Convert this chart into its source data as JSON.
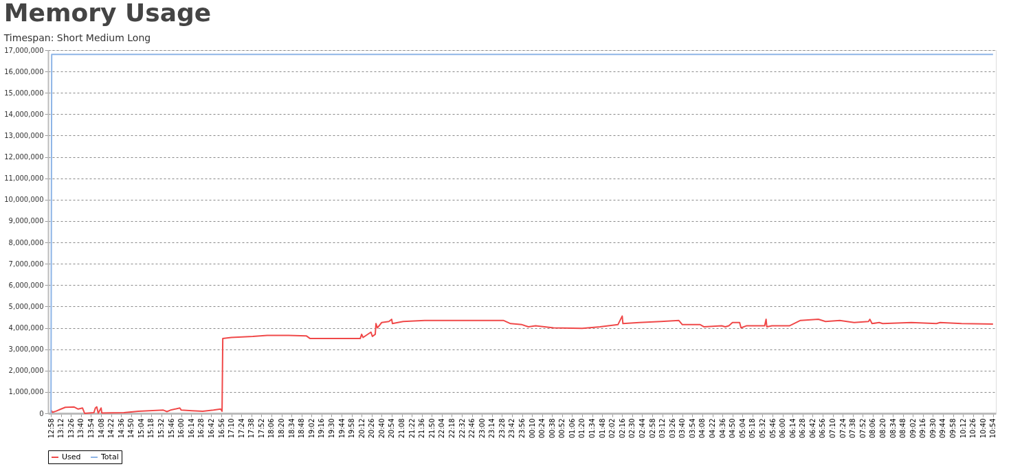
{
  "chart_data": {
    "type": "line",
    "title": "Memory Usage",
    "subtitle": "Timespan: Short Medium Long",
    "xlim": [
      "2000-01-01T12:54",
      "2000-01-02T10:58"
    ],
    "ylim": [
      0,
      17000000
    ],
    "yticks": [
      0,
      {
        "value": 1000000,
        "label": "1,000,000"
      },
      {
        "value": 2000000,
        "label": "2,000,000"
      },
      {
        "value": 3000000,
        "label": "3,000,000"
      },
      {
        "value": 4000000,
        "label": "4,000,000"
      },
      {
        "value": 5000000,
        "label": "5,000,000"
      },
      {
        "value": 6000000,
        "label": "6,000,000"
      },
      {
        "value": 7000000,
        "label": "7,000,000"
      },
      {
        "value": 8000000,
        "label": "8,000,000"
      },
      {
        "value": 9000000,
        "label": "9,000,000"
      },
      {
        "value": 10000000,
        "label": "10,000,000"
      },
      {
        "value": 11000000,
        "label": "11,000,000"
      },
      {
        "value": 12000000,
        "label": "12,000,000"
      },
      {
        "value": 13000000,
        "label": "13,000,000"
      },
      {
        "value": 14000000,
        "label": "14,000,000"
      },
      {
        "value": 15000000,
        "label": "15,000,000"
      },
      {
        "value": 16000000,
        "label": "16,000,000"
      },
      {
        "value": 17000000,
        "label": "17,000,000"
      }
    ],
    "xticks": [
      {
        "value": "2000-01-01T12:58",
        "label": "12:58"
      },
      {
        "value": "2000-01-01T13:12",
        "label": "13:12"
      },
      {
        "value": "2000-01-01T13:26",
        "label": "13:26"
      },
      {
        "value": "2000-01-01T13:40",
        "label": "13:40"
      },
      {
        "value": "2000-01-01T13:54",
        "label": "13:54"
      },
      {
        "value": "2000-01-01T14:08",
        "label": "14:08"
      },
      {
        "value": "2000-01-01T14:22",
        "label": "14:22"
      },
      {
        "value": "2000-01-01T14:36",
        "label": "14:36"
      },
      {
        "value": "2000-01-01T14:50",
        "label": "14:50"
      },
      {
        "value": "2000-01-01T15:04",
        "label": "15:04"
      },
      {
        "value": "2000-01-01T15:18",
        "label": "15:18"
      },
      {
        "value": "2000-01-01T15:32",
        "label": "15:32"
      },
      {
        "value": "2000-01-01T15:46",
        "label": "15:46"
      },
      {
        "value": "2000-01-01T16:00",
        "label": "16:00"
      },
      {
        "value": "2000-01-01T16:14",
        "label": "16:14"
      },
      {
        "value": "2000-01-01T16:28",
        "label": "16:28"
      },
      {
        "value": "2000-01-01T16:42",
        "label": "16:42"
      },
      {
        "value": "2000-01-01T16:56",
        "label": "16:56"
      },
      {
        "value": "2000-01-01T17:10",
        "label": "17:10"
      },
      {
        "value": "2000-01-01T17:24",
        "label": "17:24"
      },
      {
        "value": "2000-01-01T17:38",
        "label": "17:38"
      },
      {
        "value": "2000-01-01T17:52",
        "label": "17:52"
      },
      {
        "value": "2000-01-01T18:06",
        "label": "18:06"
      },
      {
        "value": "2000-01-01T18:20",
        "label": "18:20"
      },
      {
        "value": "2000-01-01T18:34",
        "label": "18:34"
      },
      {
        "value": "2000-01-01T18:48",
        "label": "18:48"
      },
      {
        "value": "2000-01-01T19:02",
        "label": "19:02"
      },
      {
        "value": "2000-01-01T19:16",
        "label": "19:16"
      },
      {
        "value": "2000-01-01T19:30",
        "label": "19:30"
      },
      {
        "value": "2000-01-01T19:44",
        "label": "19:44"
      },
      {
        "value": "2000-01-01T19:58",
        "label": "19:58"
      },
      {
        "value": "2000-01-01T20:12",
        "label": "20:12"
      },
      {
        "value": "2000-01-01T20:26",
        "label": "20:26"
      },
      {
        "value": "2000-01-01T20:40",
        "label": "20:40"
      },
      {
        "value": "2000-01-01T20:54",
        "label": "20:54"
      },
      {
        "value": "2000-01-01T21:08",
        "label": "21:08"
      },
      {
        "value": "2000-01-01T21:22",
        "label": "21:22"
      },
      {
        "value": "2000-01-01T21:36",
        "label": "21:36"
      },
      {
        "value": "2000-01-01T21:50",
        "label": "21:50"
      },
      {
        "value": "2000-01-01T22:04",
        "label": "22:04"
      },
      {
        "value": "2000-01-01T22:18",
        "label": "22:18"
      },
      {
        "value": "2000-01-01T22:32",
        "label": "22:32"
      },
      {
        "value": "2000-01-01T22:46",
        "label": "22:46"
      },
      {
        "value": "2000-01-01T23:00",
        "label": "23:00"
      },
      {
        "value": "2000-01-01T23:14",
        "label": "23:14"
      },
      {
        "value": "2000-01-01T23:28",
        "label": "23:28"
      },
      {
        "value": "2000-01-01T23:42",
        "label": "23:42"
      },
      {
        "value": "2000-01-01T23:56",
        "label": "23:56"
      },
      {
        "value": "2000-01-02T00:10",
        "label": "00:10"
      },
      {
        "value": "2000-01-02T00:24",
        "label": "00:24"
      },
      {
        "value": "2000-01-02T00:38",
        "label": "00:38"
      },
      {
        "value": "2000-01-02T00:52",
        "label": "00:52"
      },
      {
        "value": "2000-01-02T01:06",
        "label": "01:06"
      },
      {
        "value": "2000-01-02T01:20",
        "label": "01:20"
      },
      {
        "value": "2000-01-02T01:34",
        "label": "01:34"
      },
      {
        "value": "2000-01-02T01:48",
        "label": "01:48"
      },
      {
        "value": "2000-01-02T02:02",
        "label": "02:02"
      },
      {
        "value": "2000-01-02T02:16",
        "label": "02:16"
      },
      {
        "value": "2000-01-02T02:30",
        "label": "02:30"
      },
      {
        "value": "2000-01-02T02:44",
        "label": "02:44"
      },
      {
        "value": "2000-01-02T02:58",
        "label": "02:58"
      },
      {
        "value": "2000-01-02T03:12",
        "label": "03:12"
      },
      {
        "value": "2000-01-02T03:26",
        "label": "03:26"
      },
      {
        "value": "2000-01-02T03:40",
        "label": "03:40"
      },
      {
        "value": "2000-01-02T03:54",
        "label": "03:54"
      },
      {
        "value": "2000-01-02T04:08",
        "label": "04:08"
      },
      {
        "value": "2000-01-02T04:22",
        "label": "04:22"
      },
      {
        "value": "2000-01-02T04:36",
        "label": "04:36"
      },
      {
        "value": "2000-01-02T04:50",
        "label": "04:50"
      },
      {
        "value": "2000-01-02T05:04",
        "label": "05:04"
      },
      {
        "value": "2000-01-02T05:18",
        "label": "05:18"
      },
      {
        "value": "2000-01-02T05:32",
        "label": "05:32"
      },
      {
        "value": "2000-01-02T05:46",
        "label": "05:46"
      },
      {
        "value": "2000-01-02T06:00",
        "label": "06:00"
      },
      {
        "value": "2000-01-02T06:14",
        "label": "06:14"
      },
      {
        "value": "2000-01-02T06:28",
        "label": "06:28"
      },
      {
        "value": "2000-01-02T06:42",
        "label": "06:42"
      },
      {
        "value": "2000-01-02T06:56",
        "label": "06:56"
      },
      {
        "value": "2000-01-02T07:10",
        "label": "07:10"
      },
      {
        "value": "2000-01-02T07:24",
        "label": "07:24"
      },
      {
        "value": "2000-01-02T07:38",
        "label": "07:38"
      },
      {
        "value": "2000-01-02T07:52",
        "label": "07:52"
      },
      {
        "value": "2000-01-02T08:06",
        "label": "08:06"
      },
      {
        "value": "2000-01-02T08:20",
        "label": "08:20"
      },
      {
        "value": "2000-01-02T08:34",
        "label": "08:34"
      },
      {
        "value": "2000-01-02T08:48",
        "label": "08:48"
      },
      {
        "value": "2000-01-02T09:02",
        "label": "09:02"
      },
      {
        "value": "2000-01-02T09:16",
        "label": "09:16"
      },
      {
        "value": "2000-01-02T09:30",
        "label": "09:30"
      },
      {
        "value": "2000-01-02T09:44",
        "label": "09:44"
      },
      {
        "value": "2000-01-02T09:58",
        "label": "09:58"
      },
      {
        "value": "2000-01-02T10:12",
        "label": "10:12"
      },
      {
        "value": "2000-01-02T10:26",
        "label": "10:26"
      },
      {
        "value": "2000-01-02T10:40",
        "label": "10:40"
      },
      {
        "value": "2000-01-02T10:54",
        "label": "10:54"
      }
    ],
    "grid": "y",
    "legend": "bottom",
    "line_style": "solid",
    "series": [
      {
        "name": "Used",
        "color": "#f04848",
        "x": [
          "2000-01-01T12:58",
          "2000-01-01T13:00",
          "2000-01-01T13:05",
          "2000-01-01T13:12",
          "2000-01-01T13:18",
          "2000-01-01T13:30",
          "2000-01-01T13:36",
          "2000-01-01T13:42",
          "2000-01-01T13:45",
          "2000-01-01T13:58",
          "2000-01-01T14:00",
          "2000-01-01T14:02",
          "2000-01-01T14:04",
          "2000-01-01T14:08",
          "2000-01-01T14:09",
          "2000-01-01T14:40",
          "2000-01-01T15:00",
          "2000-01-01T15:35",
          "2000-01-01T15:40",
          "2000-01-01T15:45",
          "2000-01-01T15:58",
          "2000-01-01T16:00",
          "2000-01-01T16:15",
          "2000-01-01T16:30",
          "2000-01-01T16:45",
          "2000-01-01T16:55",
          "2000-01-01T16:57",
          "2000-01-01T16:58",
          "2000-01-01T17:10",
          "2000-01-01T17:40",
          "2000-01-01T18:00",
          "2000-01-01T18:30",
          "2000-01-01T18:55",
          "2000-01-01T19:00",
          "2000-01-01T20:10",
          "2000-01-01T20:12",
          "2000-01-01T20:14",
          "2000-01-01T20:25",
          "2000-01-01T20:27",
          "2000-01-01T20:31",
          "2000-01-01T20:32",
          "2000-01-01T20:34",
          "2000-01-01T20:40",
          "2000-01-01T20:50",
          "2000-01-01T20:54",
          "2000-01-01T20:55",
          "2000-01-01T21:10",
          "2000-01-01T21:40",
          "2000-01-01T23:30",
          "2000-01-01T23:40",
          "2000-01-01T23:56",
          "2000-01-02T00:05",
          "2000-01-02T00:15",
          "2000-01-02T00:40",
          "2000-01-02T01:20",
          "2000-01-02T01:45",
          "2000-01-02T02:10",
          "2000-01-02T02:16",
          "2000-01-02T02:17",
          "2000-01-02T02:40",
          "2000-01-02T03:10",
          "2000-01-02T03:35",
          "2000-01-02T03:40",
          "2000-01-02T04:05",
          "2000-01-02T04:10",
          "2000-01-02T04:35",
          "2000-01-02T04:40",
          "2000-01-02T04:45",
          "2000-01-02T04:50",
          "2000-01-02T05:00",
          "2000-01-02T05:02",
          "2000-01-02T05:10",
          "2000-01-02T05:35",
          "2000-01-02T05:37",
          "2000-01-02T05:38",
          "2000-01-02T05:45",
          "2000-01-02T06:10",
          "2000-01-02T06:25",
          "2000-01-02T06:50",
          "2000-01-02T07:00",
          "2000-01-02T07:20",
          "2000-01-02T07:40",
          "2000-01-02T08:00",
          "2000-01-02T08:02",
          "2000-01-02T08:05",
          "2000-01-02T08:15",
          "2000-01-02T08:20",
          "2000-01-02T09:00",
          "2000-01-02T09:35",
          "2000-01-02T09:40",
          "2000-01-02T10:10",
          "2000-01-02T10:54"
        ],
        "values": [
          150000,
          50000,
          100000,
          200000,
          280000,
          300000,
          200000,
          250000,
          0,
          30000,
          250000,
          300000,
          10000,
          250000,
          20000,
          30000,
          100000,
          150000,
          80000,
          150000,
          250000,
          150000,
          120000,
          100000,
          150000,
          200000,
          100000,
          3500000,
          3550000,
          3600000,
          3650000,
          3650000,
          3620000,
          3500000,
          3500000,
          3700000,
          3550000,
          3800000,
          3600000,
          3700000,
          4200000,
          4000000,
          4250000,
          4300000,
          4400000,
          4200000,
          4300000,
          4350000,
          4350000,
          4200000,
          4150000,
          4050000,
          4100000,
          4000000,
          3980000,
          4050000,
          4150000,
          4550000,
          4200000,
          4250000,
          4300000,
          4350000,
          4150000,
          4150000,
          4050000,
          4100000,
          4050000,
          4100000,
          4250000,
          4250000,
          4000000,
          4100000,
          4100000,
          4400000,
          4050000,
          4100000,
          4100000,
          4350000,
          4400000,
          4300000,
          4350000,
          4250000,
          4300000,
          4400000,
          4200000,
          4250000,
          4200000,
          4250000,
          4200000,
          4250000,
          4200000,
          4180000
        ]
      },
      {
        "name": "Total",
        "color": "#8db4e6",
        "x": [
          "2000-01-01T12:58",
          "2000-01-01T12:59",
          "2000-01-02T10:54"
        ],
        "values": [
          0,
          16800000,
          16800000
        ]
      }
    ]
  }
}
